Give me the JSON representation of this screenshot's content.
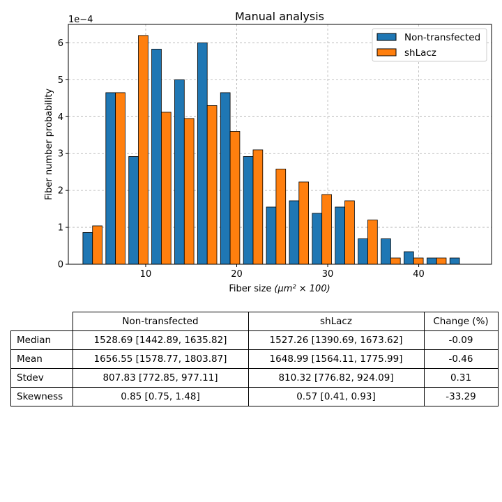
{
  "chart_data": {
    "type": "bar",
    "title": "Manual analysis",
    "xlabel": "Fiber size",
    "xlabel_math": "(μm² × 100)",
    "ylabel": "Fiber number probability",
    "y_scale_label": "1e−4",
    "x_ticks": [
      10,
      20,
      30,
      40
    ],
    "y_ticks": [
      0,
      1,
      2,
      3,
      4,
      5,
      6
    ],
    "xlim": [
      1.5,
      48
    ],
    "ylim": [
      0,
      6.5
    ],
    "grid": true,
    "legend_position": "top-right",
    "bin_centers": [
      4.16,
      6.68,
      9.2,
      11.72,
      14.24,
      16.76,
      19.28,
      21.8,
      24.32,
      26.84,
      29.36,
      31.88,
      34.4,
      36.92,
      39.44,
      41.96,
      44.48
    ],
    "series": [
      {
        "name": "Non-transfected",
        "color": "#1f77b4",
        "values": [
          0.86,
          4.65,
          2.92,
          5.83,
          5.0,
          6.0,
          4.65,
          2.92,
          1.55,
          1.72,
          1.38,
          1.55,
          0.69,
          0.69,
          0.34,
          0.17,
          0.17
        ]
      },
      {
        "name": "shLacz",
        "color": "#ff7f0e",
        "values": [
          1.04,
          4.65,
          6.2,
          4.12,
          3.95,
          4.3,
          3.6,
          3.1,
          2.58,
          2.23,
          1.89,
          1.72,
          1.2,
          0.17,
          0.17,
          0.17,
          0.0
        ]
      }
    ]
  },
  "table": {
    "columns": [
      "Non-transfected",
      "shLacz",
      "Change (%)"
    ],
    "rows": [
      {
        "label": "Median",
        "cells": [
          "1528.69 [1442.89, 1635.82]",
          "1527.26 [1390.69, 1673.62]",
          "-0.09"
        ]
      },
      {
        "label": "Mean",
        "cells": [
          "1656.55 [1578.77, 1803.87]",
          "1648.99 [1564.11, 1775.99]",
          "-0.46"
        ]
      },
      {
        "label": "Stdev",
        "cells": [
          "807.83 [772.85, 977.11]",
          "810.32 [776.82, 924.09]",
          "0.31"
        ]
      },
      {
        "label": "Skewness",
        "cells": [
          "0.85 [0.75, 1.48]",
          "0.57 [0.41, 0.93]",
          "-33.29"
        ]
      }
    ]
  }
}
